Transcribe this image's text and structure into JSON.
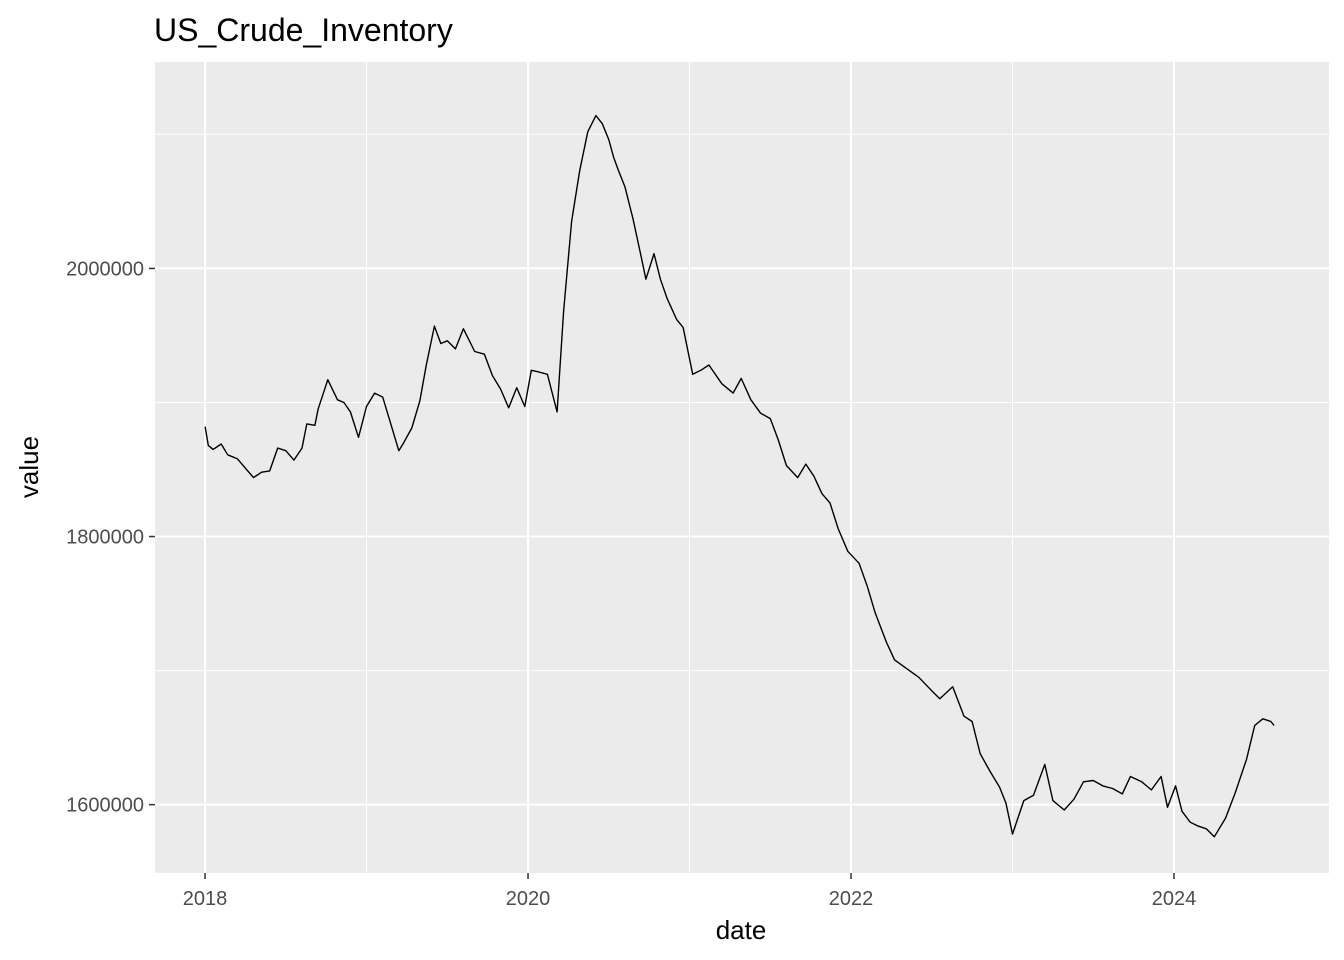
{
  "chart_data": {
    "type": "line",
    "title": "US_Crude_Inventory",
    "xlabel": "date",
    "ylabel": "value",
    "x_ticks": [
      "2018",
      "2020",
      "2022",
      "2024"
    ],
    "y_ticks": [
      "1600000",
      "1800000",
      "2000000"
    ],
    "xlim": [
      2017.69,
      2024.96
    ],
    "ylim": [
      1549000,
      2154000
    ],
    "grid": true,
    "background_color": "#EBEBEB",
    "grid_color": "#FFFFFF",
    "line_color": "#000000",
    "series": [
      {
        "x": [
          2018.0,
          2018.02,
          2018.05,
          2018.1,
          2018.14,
          2018.2,
          2018.25,
          2018.3,
          2018.35,
          2018.4,
          2018.45,
          2018.5,
          2018.55,
          2018.6,
          2018.63,
          2018.68,
          2018.7,
          2018.76,
          2018.82,
          2018.86,
          2018.9,
          2018.95,
          2019.0,
          2019.05,
          2019.1,
          2019.15,
          2019.2,
          2019.23,
          2019.28,
          2019.33,
          2019.37,
          2019.42,
          2019.46,
          2019.5,
          2019.55,
          2019.6,
          2019.67,
          2019.73,
          2019.78,
          2019.83,
          2019.88,
          2019.93,
          2019.98,
          2020.02,
          2020.06,
          2020.12,
          2020.18,
          2020.22,
          2020.27,
          2020.32,
          2020.37,
          2020.42,
          2020.46,
          2020.5,
          2020.53,
          2020.56,
          2020.6,
          2020.65,
          2020.7,
          2020.73,
          2020.78,
          2020.82,
          2020.86,
          2020.92,
          2020.96,
          2021.02,
          2021.07,
          2021.12,
          2021.2,
          2021.27,
          2021.32,
          2021.38,
          2021.44,
          2021.5,
          2021.55,
          2021.6,
          2021.67,
          2021.72,
          2021.77,
          2021.82,
          2021.87,
          2021.92,
          2021.98,
          2022.05,
          2022.1,
          2022.15,
          2022.22,
          2022.27,
          2022.35,
          2022.42,
          2022.5,
          2022.55,
          2022.63,
          2022.7,
          2022.75,
          2022.8,
          2022.86,
          2022.92,
          2022.96,
          2023.0,
          2023.07,
          2023.13,
          2023.2,
          2023.25,
          2023.32,
          2023.38,
          2023.44,
          2023.5,
          2023.56,
          2023.62,
          2023.68,
          2023.73,
          2023.8,
          2023.86,
          2023.92,
          2023.96,
          2024.01,
          2024.05,
          2024.1,
          2024.15,
          2024.2,
          2024.25,
          2024.32,
          2024.38,
          2024.45,
          2024.5,
          2024.55,
          2024.6,
          2024.62
        ],
        "y": [
          1882000,
          1868000,
          1865000,
          1869000,
          1861000,
          1858000,
          1851000,
          1844000,
          1848000,
          1849000,
          1866000,
          1864000,
          1857000,
          1866000,
          1884000,
          1883000,
          1895000,
          1917000,
          1902000,
          1900000,
          1893000,
          1874000,
          1897000,
          1907000,
          1904000,
          1884000,
          1864000,
          1870000,
          1881000,
          1901000,
          1928000,
          1957000,
          1944000,
          1946000,
          1940000,
          1955000,
          1938000,
          1936000,
          1920000,
          1910000,
          1896000,
          1911000,
          1897000,
          1924000,
          1923000,
          1921000,
          1893000,
          1968000,
          2035000,
          2073000,
          2102000,
          2114000,
          2108000,
          2096000,
          2083000,
          2073000,
          2061000,
          2037000,
          2009000,
          1992000,
          2011000,
          1992000,
          1978000,
          1962000,
          1956000,
          1921000,
          1924000,
          1928000,
          1914000,
          1907000,
          1918000,
          1902000,
          1892000,
          1888000,
          1872000,
          1853000,
          1844000,
          1854000,
          1845000,
          1832000,
          1825000,
          1806000,
          1789000,
          1780000,
          1763000,
          1743000,
          1721000,
          1708000,
          1701000,
          1695000,
          1685000,
          1679000,
          1688000,
          1666000,
          1662000,
          1638000,
          1625000,
          1613000,
          1601000,
          1578000,
          1603000,
          1607000,
          1630000,
          1603000,
          1596000,
          1604000,
          1617000,
          1618000,
          1614000,
          1612000,
          1608000,
          1621000,
          1617000,
          1611000,
          1621000,
          1598000,
          1614000,
          1595000,
          1587000,
          1584000,
          1582000,
          1576000,
          1590000,
          1609000,
          1634000,
          1659000,
          1664000,
          1662000,
          1659000
        ]
      }
    ]
  }
}
